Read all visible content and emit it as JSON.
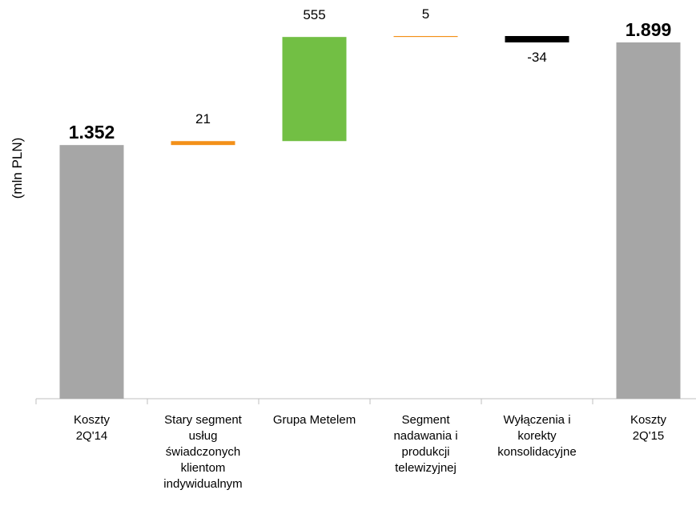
{
  "chart_data": {
    "type": "waterfall",
    "y_label": "(mln PLN)",
    "categories": [
      "Koszty 2Q'14",
      "Stary segment usług świadczonych klientom indywidualnym",
      "Grupa Metelem",
      "Segment nadawania i produkcji telewizyjnej",
      "Wyłączenia i korekty konsolidacyjne",
      "Koszty 2Q'15"
    ],
    "values": [
      1352,
      21,
      555,
      5,
      -34,
      1899
    ],
    "value_labels": [
      "1.352",
      "21",
      "555",
      "5",
      "-34",
      "1.899"
    ],
    "measure": [
      "total",
      "relative",
      "relative",
      "relative",
      "relative",
      "total"
    ],
    "colors": [
      "#a6a6a6",
      "#f39019",
      "#72bf44",
      "#f39019",
      "#000000",
      "#a6a6a6"
    ]
  }
}
